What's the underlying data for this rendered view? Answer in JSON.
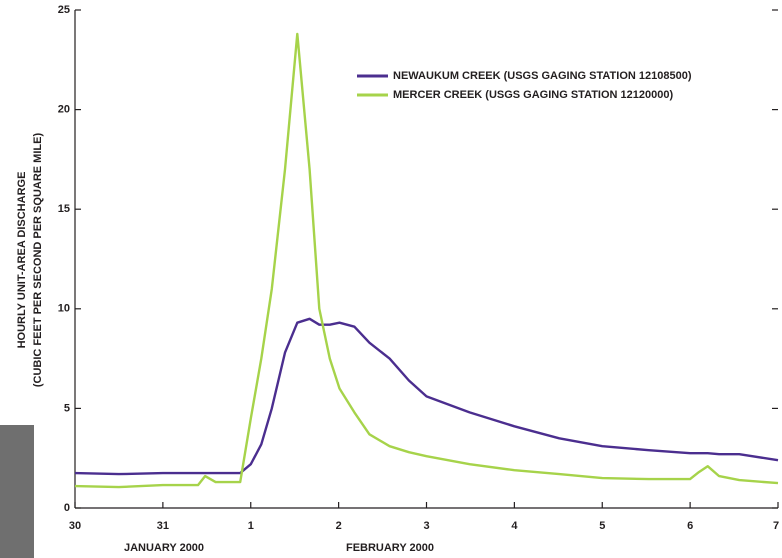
{
  "chart_data": {
    "type": "line",
    "ylabel": [
      "HOURLY UNIT-AREA DISCHARGE",
      "(CUBIC FEET PER SECOND PER SQUARE MILE)"
    ],
    "xlabels": [
      "JANUARY 2000",
      "FEBRUARY 2000"
    ],
    "x": [
      0,
      0.5,
      1,
      1.4,
      1.48,
      1.6,
      1.88,
      2,
      2.12,
      2.24,
      2.39,
      2.53,
      2.67,
      2.78,
      2.9,
      3.01,
      3.18,
      3.35,
      3.58,
      3.8,
      4,
      4.49,
      5,
      5.51,
      6,
      6.53,
      7,
      7.1,
      7.2,
      7.33,
      7.56,
      8
    ],
    "series": [
      {
        "name": "NEWAUKUM CREEK (USGS GAGING STATION 12108500)",
        "color": "#4b2e8f",
        "values": [
          1.75,
          1.7,
          1.75,
          1.75,
          1.75,
          1.75,
          1.75,
          2.2,
          3.2,
          5,
          7.8,
          9.3,
          9.5,
          9.2,
          9.2,
          9.3,
          9.1,
          8.3,
          7.5,
          6.4,
          5.6,
          4.8,
          4.1,
          3.5,
          3.1,
          2.9,
          2.75,
          2.75,
          2.75,
          2.7,
          2.7,
          2.4
        ]
      },
      {
        "name": "MERCER CREEK (USGS GAGING STATION 12120000)",
        "color": "#a6d34a",
        "values": [
          1.1,
          1.05,
          1.15,
          1.15,
          1.6,
          1.3,
          1.3,
          4.5,
          7.5,
          11,
          17,
          23.8,
          17,
          10,
          7.5,
          6,
          4.8,
          3.7,
          3.1,
          2.8,
          2.6,
          2.2,
          1.9,
          1.7,
          1.5,
          1.45,
          1.45,
          1.8,
          2.1,
          1.6,
          1.4,
          1.25
        ]
      }
    ],
    "xlim": [
      0,
      8
    ],
    "xticks": [
      {
        "value": 0,
        "label": "30"
      },
      {
        "value": 1,
        "label": "31"
      },
      {
        "value": 2,
        "label": "1"
      },
      {
        "value": 3,
        "label": "2"
      },
      {
        "value": 4,
        "label": "3"
      },
      {
        "value": 5,
        "label": "4"
      },
      {
        "value": 6,
        "label": "5"
      },
      {
        "value": 7,
        "label": "6"
      },
      {
        "value": 8,
        "label": "7"
      }
    ],
    "ylim": [
      0,
      25
    ],
    "yticks": [
      0,
      5,
      10,
      15,
      20,
      25
    ],
    "legend": "upper right"
  }
}
